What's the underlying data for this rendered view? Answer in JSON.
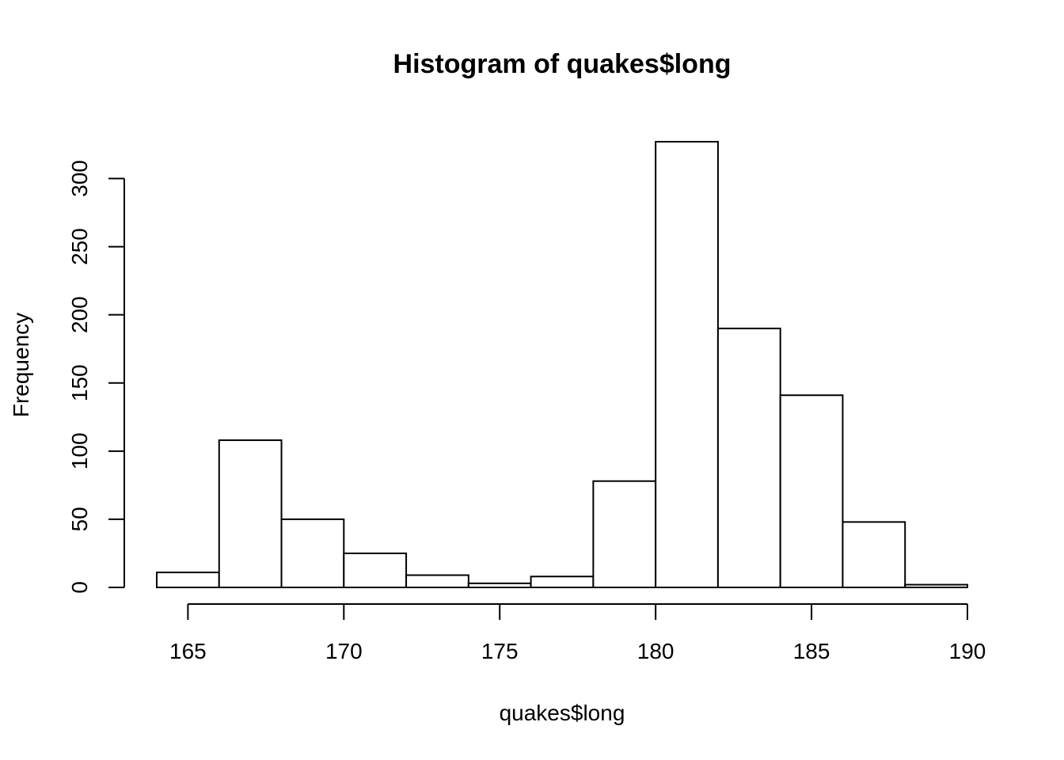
{
  "chart_data": {
    "type": "histogram",
    "title": "Histogram of quakes$long",
    "xlabel": "quakes$long",
    "ylabel": "Frequency",
    "bins": [
      {
        "from": 164,
        "to": 166,
        "count": 11
      },
      {
        "from": 166,
        "to": 168,
        "count": 108
      },
      {
        "from": 168,
        "to": 170,
        "count": 50
      },
      {
        "from": 170,
        "to": 172,
        "count": 25
      },
      {
        "from": 172,
        "to": 174,
        "count": 9
      },
      {
        "from": 174,
        "to": 176,
        "count": 3
      },
      {
        "from": 176,
        "to": 178,
        "count": 8
      },
      {
        "from": 178,
        "to": 180,
        "count": 78
      },
      {
        "from": 180,
        "to": 182,
        "count": 327
      },
      {
        "from": 182,
        "to": 184,
        "count": 190
      },
      {
        "from": 184,
        "to": 186,
        "count": 141
      },
      {
        "from": 186,
        "to": 188,
        "count": 48
      },
      {
        "from": 188,
        "to": 190,
        "count": 2
      }
    ],
    "x_ticks": [
      "165",
      "170",
      "175",
      "180",
      "185",
      "190"
    ],
    "y_ticks": [
      "0",
      "50",
      "100",
      "150",
      "200",
      "250",
      "300"
    ],
    "xlim": [
      164,
      190
    ],
    "ylim": [
      0,
      327
    ],
    "grid": false,
    "legend": false,
    "colors": {
      "bar_fill": "#ffffff",
      "bar_stroke": "#000000"
    }
  }
}
